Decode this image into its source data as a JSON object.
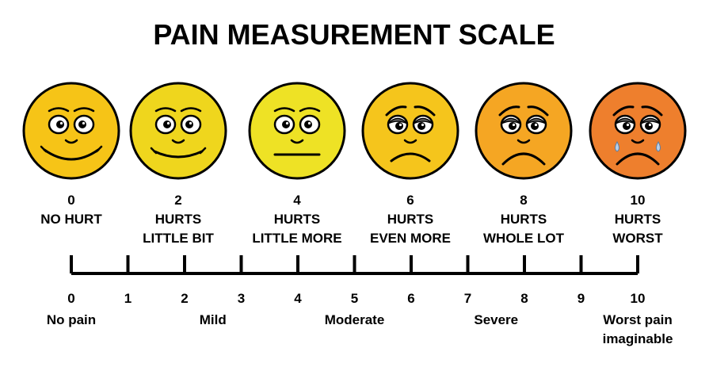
{
  "title": "PAIN MEASUREMENT SCALE",
  "faces": [
    {
      "score": "0",
      "lines": [
        "NO HURT"
      ],
      "color": "#f6c417",
      "expression": "big-smile"
    },
    {
      "score": "2",
      "lines": [
        "HURTS",
        "LITTLE BIT"
      ],
      "color": "#efd61d",
      "expression": "smile"
    },
    {
      "score": "4",
      "lines": [
        "HURTS",
        "LITTLE MORE"
      ],
      "color": "#eee225",
      "expression": "neutral"
    },
    {
      "score": "6",
      "lines": [
        "HURTS",
        "EVEN MORE"
      ],
      "color": "#f5c51c",
      "expression": "frown"
    },
    {
      "score": "8",
      "lines": [
        "HURTS",
        "WHOLE LOT"
      ],
      "color": "#f5a623",
      "expression": "big-frown"
    },
    {
      "score": "10",
      "lines": [
        "HURTS",
        "WORST"
      ],
      "color": "#ee7f2d",
      "expression": "crying"
    }
  ],
  "scale": {
    "ticks": [
      "0",
      "1",
      "2",
      "3",
      "4",
      "5",
      "6",
      "7",
      "8",
      "9",
      "10"
    ],
    "categories": [
      {
        "lines": [
          "No pain"
        ],
        "at": 0
      },
      {
        "lines": [
          "Mild"
        ],
        "at": 2.5
      },
      {
        "lines": [
          "Moderate"
        ],
        "at": 5
      },
      {
        "lines": [
          "Severe"
        ],
        "at": 7.5
      },
      {
        "lines": [
          "Worst pain",
          "imaginable"
        ],
        "at": 10
      }
    ]
  },
  "colors": {
    "outline": "#000000",
    "tear": "#b9cfe8",
    "eye_shadow": "#6b6b6b"
  }
}
